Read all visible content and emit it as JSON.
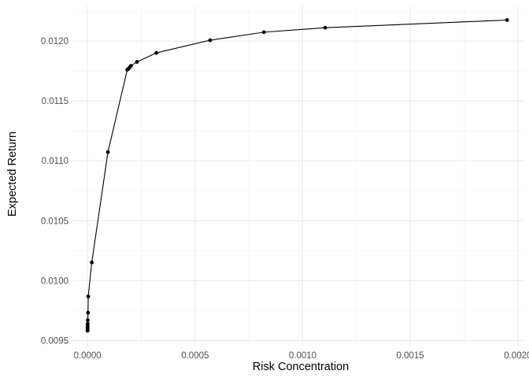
{
  "chart_data": {
    "type": "line",
    "title": "",
    "xlabel": "Risk Concentration",
    "ylabel": "Expected Return",
    "xlim": [
      -7e-05,
      0.00203
    ],
    "ylim": [
      0.00945,
      0.01229
    ],
    "x_ticks": [
      0.0,
      0.0005,
      0.001,
      0.0015,
      0.002
    ],
    "x_tick_labels": [
      "0.0000",
      "0.0005",
      "0.0010",
      "0.0015",
      "0.0020"
    ],
    "y_ticks": [
      0.0095,
      0.01,
      0.0105,
      0.011,
      0.0115,
      0.012
    ],
    "y_tick_labels": [
      "0.0095",
      "0.0100",
      "0.0105",
      "0.0110",
      "0.0115",
      "0.0120"
    ],
    "grid": true,
    "legend": "none",
    "line_color": "#000000",
    "series": [
      {
        "x": [
          2e-07,
          3e-07,
          4e-07,
          5e-07,
          6e-07,
          8e-07,
          1.2e-06,
          2.5e-06,
          3.5e-06,
          2e-05,
          9.5e-05,
          0.000185,
          0.00019,
          0.000197,
          0.000202,
          0.00023,
          0.00032,
          0.00057,
          0.00082,
          0.001105,
          0.00195
        ],
        "y": [
          0.009582,
          0.009592,
          0.009602,
          0.009612,
          0.009622,
          0.00964,
          0.00967,
          0.009732,
          0.009868,
          0.010152,
          0.011073,
          0.011761,
          0.011768,
          0.011782,
          0.011793,
          0.011826,
          0.011901,
          0.012007,
          0.012074,
          0.012111,
          0.012175
        ]
      }
    ]
  }
}
